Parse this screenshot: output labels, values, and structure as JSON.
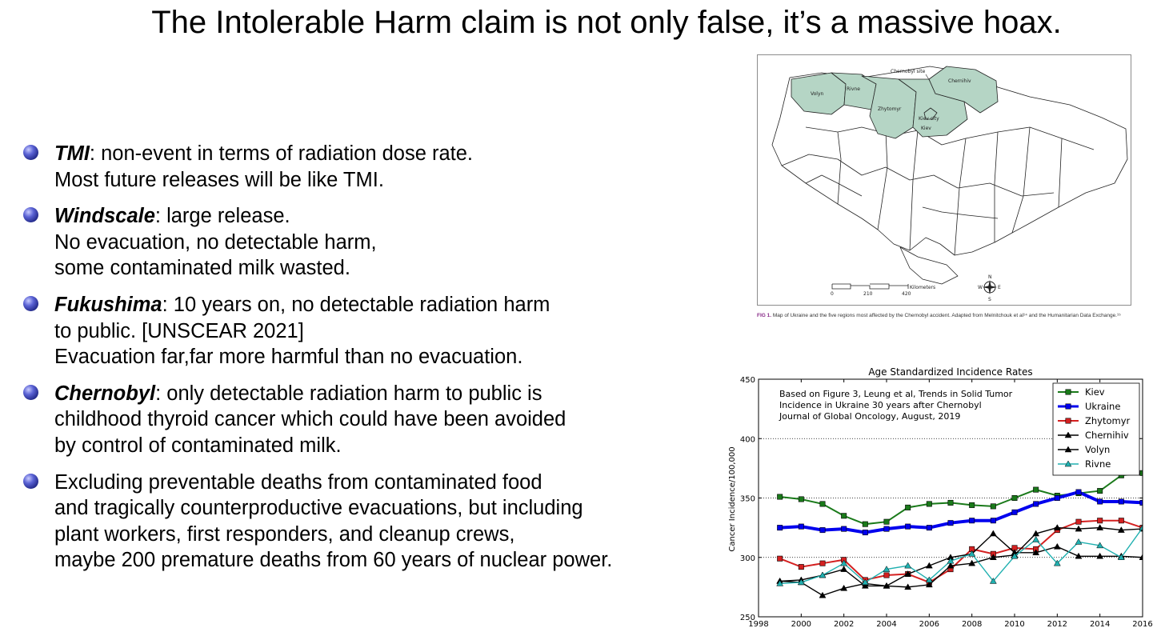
{
  "title": "The Intolerable Harm claim is not only false, it’s a massive hoax.",
  "bullets": [
    {
      "keyword": "TMI",
      "rest": ": non-event in terms of radiation dose rate.",
      "lines": [
        "Most future releases will be like TMI."
      ]
    },
    {
      "keyword": "Windscale",
      "rest": ": large release.",
      "lines": [
        "No evacuation, no detectable harm,",
        "some contaminated milk wasted."
      ]
    },
    {
      "keyword": "Fukushima",
      "rest": ": 10 years on, no detectable radiation harm",
      "lines": [
        "to public. [UNSCEAR 2021]",
        "Evacuation far,far more harmful than no evacuation."
      ]
    },
    {
      "keyword": "Chernobyl",
      "rest": ": only detectable radiation harm to public is",
      "lines": [
        "childhood thyroid cancer which could have been avoided",
        "by control of contaminated milk."
      ]
    },
    {
      "keyword": "",
      "rest": "Excluding preventable deaths from contaminated food",
      "lines": [
        "and tragically counterproductive evacuations, but including",
        "plant workers, first responders, and cleanup crews,",
        "maybe 200 premature deaths from 60 years of nuclear power."
      ]
    }
  ],
  "map": {
    "labels": {
      "volyn": "Volyn",
      "rivne": "Rivne",
      "zhytomyr": "Zhytomyr",
      "chernihiv": "Chernihiv",
      "kiev_city": "Kiev city",
      "kiev": "Kiev",
      "chernobyl_site": "Chernobyl site"
    },
    "scale": {
      "unit": "Kilometers",
      "ticks": [
        "0",
        "210",
        "420"
      ]
    },
    "compass": {
      "n": "N",
      "s": "S",
      "e": "E",
      "w": "W"
    },
    "highlight_color": "#b5d5c5",
    "caption_fig": "FIG 1.",
    "caption_text": "Map of Ukraine and the five regions most affected by the Chernobyl accident. Adapted from Melnitchouk et al¹⁴ and the Humanitarian Data Exchange.¹⁵"
  },
  "chart_data": {
    "type": "line",
    "title": "Age Standardized Incidence Rates",
    "xlabel": "",
    "ylabel": "Cancer Incidence/100,000",
    "xlim": [
      1998,
      2016
    ],
    "ylim": [
      250,
      450
    ],
    "x_ticks": [
      "1998",
      "2000",
      "2002",
      "2004",
      "2006",
      "2008",
      "2010",
      "2012",
      "2014",
      "2016"
    ],
    "y_ticks": [
      "250",
      "300",
      "350",
      "400",
      "450"
    ],
    "grid": "horizontal dotted at 300, 350, 400",
    "annotation": [
      "Based on Figure 3, Leung et al, Trends in Solid Tumor",
      "Incidence in Ukraine 30 years after Chernobyl",
      "Journal of Global Oncology, August, 2019"
    ],
    "legend_position": "top-right",
    "x": [
      1999,
      2000,
      2001,
      2002,
      2003,
      2004,
      2005,
      2006,
      2007,
      2008,
      2009,
      2010,
      2011,
      2012,
      2013,
      2014,
      2015,
      2016
    ],
    "series": [
      {
        "name": "Kiev",
        "color": "#1a7a1a",
        "marker": "square",
        "width": 2,
        "values": [
          351,
          349,
          345,
          335,
          328,
          330,
          342,
          345,
          346,
          344,
          343,
          350,
          357,
          352,
          354,
          356,
          369,
          371
        ]
      },
      {
        "name": "Ukraine",
        "color": "#0000ee",
        "marker": "square",
        "width": 4,
        "values": [
          325,
          326,
          323,
          324,
          321,
          324,
          326,
          325,
          329,
          331,
          331,
          338,
          345,
          350,
          355,
          347,
          347,
          346
        ]
      },
      {
        "name": "Zhytomyr",
        "color": "#d42020",
        "marker": "square",
        "width": 2,
        "values": [
          299,
          292,
          295,
          298,
          281,
          285,
          286,
          279,
          290,
          307,
          303,
          308,
          307,
          323,
          330,
          331,
          331,
          325
        ]
      },
      {
        "name": "Chernihiv",
        "color": "#000000",
        "marker": "triangle",
        "width": 1.4,
        "values": [
          280,
          279,
          268,
          274,
          278,
          276,
          275,
          277,
          293,
          295,
          300,
          302,
          320,
          325,
          324,
          325,
          323,
          324
        ]
      },
      {
        "name": "Volyn",
        "color": "#000000",
        "marker": "triangle",
        "width": 1.4,
        "values": [
          280,
          281,
          285,
          290,
          276,
          276,
          286,
          293,
          300,
          303,
          320,
          304,
          304,
          309,
          301,
          301,
          301,
          300
        ]
      },
      {
        "name": "Rivne",
        "color": "#20b0b0",
        "marker": "triangle",
        "width": 1.4,
        "values": [
          278,
          279,
          285,
          295,
          279,
          290,
          293,
          281,
          297,
          303,
          280,
          301,
          315,
          295,
          313,
          310,
          300,
          325
        ]
      }
    ]
  }
}
